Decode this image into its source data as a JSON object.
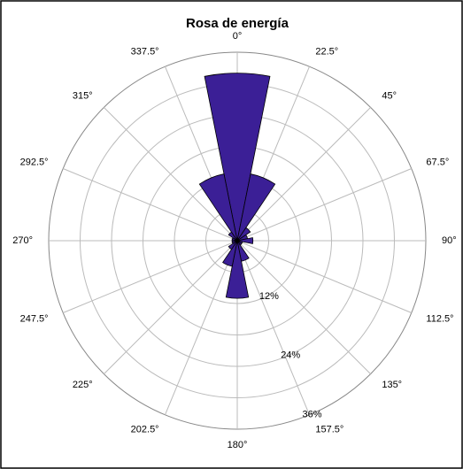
{
  "chart_data": {
    "type": "polar_bar",
    "title": "Rosa de energía",
    "categories": [
      "0°",
      "22.5°",
      "45°",
      "67.5°",
      "90°",
      "112.5°",
      "135°",
      "157.5°",
      "180°",
      "202.5°",
      "225°",
      "247.5°",
      "270°",
      "292.5°",
      "315°",
      "337.5°"
    ],
    "angles": [
      0,
      22.5,
      45,
      67.5,
      90,
      112.5,
      135,
      157.5,
      180,
      202.5,
      225,
      247.5,
      270,
      292.5,
      315,
      337.5
    ],
    "values": [
      32,
      13,
      3,
      2,
      3,
      1,
      1,
      4,
      11,
      5,
      2,
      1,
      1,
      1,
      2,
      13
    ],
    "color": "#3b1f96",
    "rlim": [
      0,
      36
    ],
    "rticks": [
      {
        "value": 12,
        "label": "12%"
      },
      {
        "value": 24,
        "label": "24%"
      },
      {
        "value": 36,
        "label": "36%"
      }
    ],
    "rminor": [
      6,
      18,
      30
    ]
  }
}
